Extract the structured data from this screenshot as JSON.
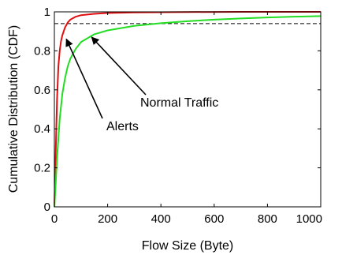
{
  "chart_data": {
    "type": "line",
    "xlabel": "Flow Size (Byte)",
    "ylabel": "Cumulative Distribution (CDF)",
    "xlim": [
      0,
      1000
    ],
    "ylim": [
      0,
      1
    ],
    "xticks": [
      0,
      200,
      400,
      600,
      800,
      1000
    ],
    "yticks": [
      0,
      0.2,
      0.4,
      0.6,
      0.8,
      1
    ],
    "xtick_labels": [
      "0",
      "200",
      "400",
      "600",
      "800",
      "1000"
    ],
    "ytick_labels": [
      "0",
      "0.2",
      "0.4",
      "0.6",
      "0.8",
      "1"
    ],
    "grid": false,
    "reference_line": {
      "y": 0.94,
      "style": "dashed",
      "color": "#000000"
    },
    "series": [
      {
        "color": "#e01010",
        "x": [
          0,
          5,
          10,
          15,
          20,
          25,
          30,
          40,
          50,
          60,
          80,
          100,
          150,
          200,
          300,
          500,
          700,
          1000
        ],
        "y": [
          0,
          0.28,
          0.55,
          0.72,
          0.8,
          0.85,
          0.88,
          0.92,
          0.945,
          0.96,
          0.975,
          0.983,
          0.99,
          0.994,
          0.997,
          0.999,
          1.0,
          1.0
        ]
      },
      {
        "color": "#22dd22",
        "x": [
          0,
          5,
          10,
          20,
          30,
          40,
          50,
          60,
          80,
          100,
          150,
          200,
          300,
          400,
          500,
          600,
          700,
          800,
          900,
          1000
        ],
        "y": [
          0,
          0.12,
          0.25,
          0.45,
          0.58,
          0.66,
          0.72,
          0.76,
          0.81,
          0.845,
          0.885,
          0.905,
          0.928,
          0.942,
          0.952,
          0.96,
          0.966,
          0.971,
          0.975,
          0.978
        ]
      }
    ],
    "annotations": [
      {
        "text": "Alerts",
        "arrow_to": [
          45,
          0.86
        ]
      },
      {
        "text": "Normal Traffic",
        "arrow_to": [
          140,
          0.87
        ]
      }
    ]
  }
}
